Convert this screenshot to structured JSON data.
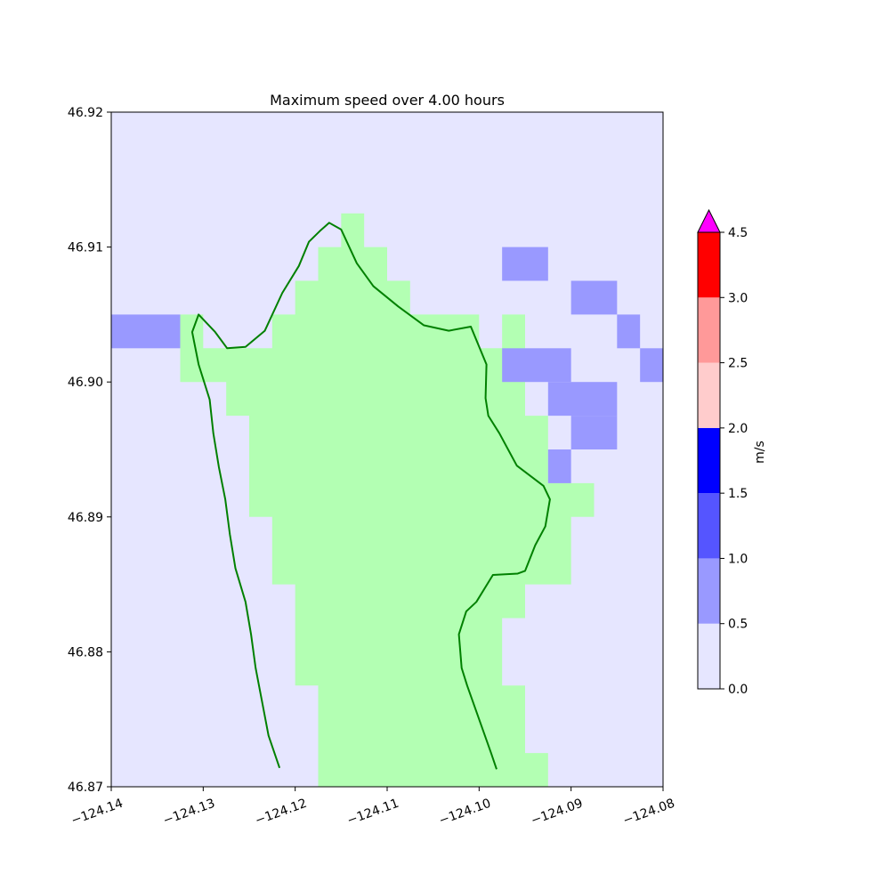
{
  "chart_data": {
    "type": "heatmap",
    "title": "Maximum speed over 4.00 hours",
    "xlim": [
      -124.14,
      -124.08
    ],
    "ylim": [
      46.87,
      46.92
    ],
    "x_ticks": [
      -124.14,
      -124.13,
      -124.12,
      -124.11,
      -124.1,
      -124.09,
      -124.08
    ],
    "x_tick_labels": [
      "−124.14",
      "−124.13",
      "−124.12",
      "−124.11",
      "−124.10",
      "−124.09",
      "−124.08"
    ],
    "y_ticks": [
      46.87,
      46.88,
      46.89,
      46.9,
      46.91,
      46.92
    ],
    "y_tick_labels": [
      "46.87",
      "46.88",
      "46.89",
      "46.90",
      "46.91",
      "46.92"
    ],
    "grid": false,
    "cell_size": [
      0.0025,
      0.0025
    ],
    "background_level_color": "#e6e6ff",
    "land_color": "#b3ffb3",
    "coastline_color": "#008000",
    "land_polygon": [
      [
        -124.1325,
        46.905
      ],
      [
        -124.13,
        46.905
      ],
      [
        -124.13,
        46.9025
      ],
      [
        -124.1225,
        46.9025
      ],
      [
        -124.1225,
        46.905
      ],
      [
        -124.12,
        46.905
      ],
      [
        -124.12,
        46.9075
      ],
      [
        -124.1175,
        46.9075
      ],
      [
        -124.1175,
        46.91
      ],
      [
        -124.115,
        46.91
      ],
      [
        -124.115,
        46.9125
      ],
      [
        -124.1125,
        46.9125
      ],
      [
        -124.1125,
        46.91
      ],
      [
        -124.11,
        46.91
      ],
      [
        -124.11,
        46.9075
      ],
      [
        -124.1075,
        46.9075
      ],
      [
        -124.1075,
        46.905
      ],
      [
        -124.1,
        46.905
      ],
      [
        -124.1,
        46.9025
      ],
      [
        -124.0975,
        46.9025
      ],
      [
        -124.0975,
        46.905
      ],
      [
        -124.095,
        46.905
      ],
      [
        -124.095,
        46.8975
      ],
      [
        -124.0925,
        46.8975
      ],
      [
        -124.0925,
        46.8925
      ],
      [
        -124.0875,
        46.8925
      ],
      [
        -124.0875,
        46.89
      ],
      [
        -124.09,
        46.89
      ],
      [
        -124.09,
        46.885
      ],
      [
        -124.095,
        46.885
      ],
      [
        -124.095,
        46.8825
      ],
      [
        -124.0975,
        46.8825
      ],
      [
        -124.0975,
        46.8775
      ],
      [
        -124.095,
        46.8775
      ],
      [
        -124.095,
        46.8725
      ],
      [
        -124.0925,
        46.8725
      ],
      [
        -124.0925,
        46.87
      ],
      [
        -124.1175,
        46.87
      ],
      [
        -124.1175,
        46.8775
      ],
      [
        -124.12,
        46.8775
      ],
      [
        -124.12,
        46.885
      ],
      [
        -124.1225,
        46.885
      ],
      [
        -124.1225,
        46.89
      ],
      [
        -124.125,
        46.89
      ],
      [
        -124.125,
        46.8975
      ],
      [
        -124.1275,
        46.8975
      ],
      [
        -124.1275,
        46.9
      ],
      [
        -124.1325,
        46.9
      ]
    ],
    "water_cells": [
      {
        "x0": -124.14,
        "y0": 46.9025,
        "x1": -124.1325,
        "y1": 46.905,
        "range": "0.5-1.0"
      },
      {
        "x0": -124.0975,
        "y0": 46.9075,
        "x1": -124.0925,
        "y1": 46.91,
        "range": "0.5-1.0"
      },
      {
        "x0": -124.09,
        "y0": 46.905,
        "x1": -124.085,
        "y1": 46.9075,
        "range": "0.5-1.0"
      },
      {
        "x0": -124.085,
        "y0": 46.9025,
        "x1": -124.0825,
        "y1": 46.905,
        "range": "0.5-1.0"
      },
      {
        "x0": -124.0825,
        "y0": 46.9,
        "x1": -124.08,
        "y1": 46.9025,
        "range": "0.5-1.0"
      },
      {
        "x0": -124.0975,
        "y0": 46.9,
        "x1": -124.09,
        "y1": 46.9025,
        "range": "0.5-1.0"
      },
      {
        "x0": -124.0925,
        "y0": 46.8975,
        "x1": -124.085,
        "y1": 46.9,
        "range": "0.5-1.0"
      },
      {
        "x0": -124.09,
        "y0": 46.895,
        "x1": -124.085,
        "y1": 46.8975,
        "range": "0.5-1.0"
      },
      {
        "x0": -124.0925,
        "y0": 46.8925,
        "x1": -124.09,
        "y1": 46.895,
        "range": "0.5-1.0"
      }
    ],
    "coastline": [
      [
        -124.1217,
        46.8714
      ],
      [
        -124.1229,
        46.8738
      ],
      [
        -124.1236,
        46.8763
      ],
      [
        -124.1243,
        46.8788
      ],
      [
        -124.1248,
        46.8813
      ],
      [
        -124.1254,
        46.8837
      ],
      [
        -124.1265,
        46.8862
      ],
      [
        -124.1271,
        46.8887
      ],
      [
        -124.1276,
        46.8913
      ],
      [
        -124.1283,
        46.8937
      ],
      [
        -124.1289,
        46.8962
      ],
      [
        -124.1293,
        46.8987
      ],
      [
        -124.1305,
        46.9013
      ],
      [
        -124.1312,
        46.9037
      ],
      [
        -124.1305,
        46.905
      ],
      [
        -124.1287,
        46.9037
      ],
      [
        -124.1274,
        46.9025
      ],
      [
        -124.1254,
        46.9026
      ],
      [
        -124.1233,
        46.9038
      ],
      [
        -124.1214,
        46.9066
      ],
      [
        -124.1196,
        46.9086
      ],
      [
        -124.1185,
        46.9104
      ],
      [
        -124.1173,
        46.9112
      ],
      [
        -124.1163,
        46.9118
      ],
      [
        -124.115,
        46.9113
      ],
      [
        -124.1133,
        46.9088
      ],
      [
        -124.1115,
        46.9071
      ],
      [
        -124.1088,
        46.9056
      ],
      [
        -124.106,
        46.9042
      ],
      [
        -124.1033,
        46.9038
      ],
      [
        -124.1009,
        46.9041
      ],
      [
        -124.0992,
        46.9013
      ],
      [
        -124.0993,
        46.8988
      ],
      [
        -124.099,
        46.8975
      ],
      [
        -124.0978,
        46.8962
      ],
      [
        -124.0959,
        46.8938
      ],
      [
        -124.093,
        46.8923
      ],
      [
        -124.0923,
        46.8913
      ],
      [
        -124.0928,
        46.8893
      ],
      [
        -124.0939,
        46.8879
      ],
      [
        -124.095,
        46.886
      ],
      [
        -124.0958,
        46.8858
      ],
      [
        -124.0985,
        46.8857
      ],
      [
        -124.1003,
        46.8837
      ],
      [
        -124.1014,
        46.883
      ],
      [
        -124.1022,
        46.8813
      ],
      [
        -124.1019,
        46.8788
      ],
      [
        -124.1013,
        46.8775
      ],
      [
        -124.1,
        46.875
      ],
      [
        -124.0987,
        46.8725
      ],
      [
        -124.0981,
        46.8713
      ]
    ],
    "colorbar": {
      "label": "m/s",
      "ticks": [
        "0.0",
        "0.5",
        "1.0",
        "1.5",
        "2.0",
        "2.5",
        "3.0",
        "4.5"
      ],
      "tick_values": [
        0.0,
        0.5,
        1.0,
        1.5,
        2.0,
        2.5,
        3.0,
        4.5
      ],
      "levels": [
        {
          "from": 0.0,
          "to": 0.5,
          "color": "#e6e6ff"
        },
        {
          "from": 0.5,
          "to": 1.0,
          "color": "#9999ff"
        },
        {
          "from": 1.0,
          "to": 1.5,
          "color": "#5555ff"
        },
        {
          "from": 1.5,
          "to": 2.0,
          "color": "#0000ff"
        },
        {
          "from": 2.0,
          "to": 2.5,
          "color": "#ffcccc"
        },
        {
          "from": 2.5,
          "to": 3.0,
          "color": "#ff9999"
        },
        {
          "from": 3.0,
          "to": 4.5,
          "color": "#ff0000"
        }
      ],
      "extend_color": "#ff00ff"
    }
  }
}
